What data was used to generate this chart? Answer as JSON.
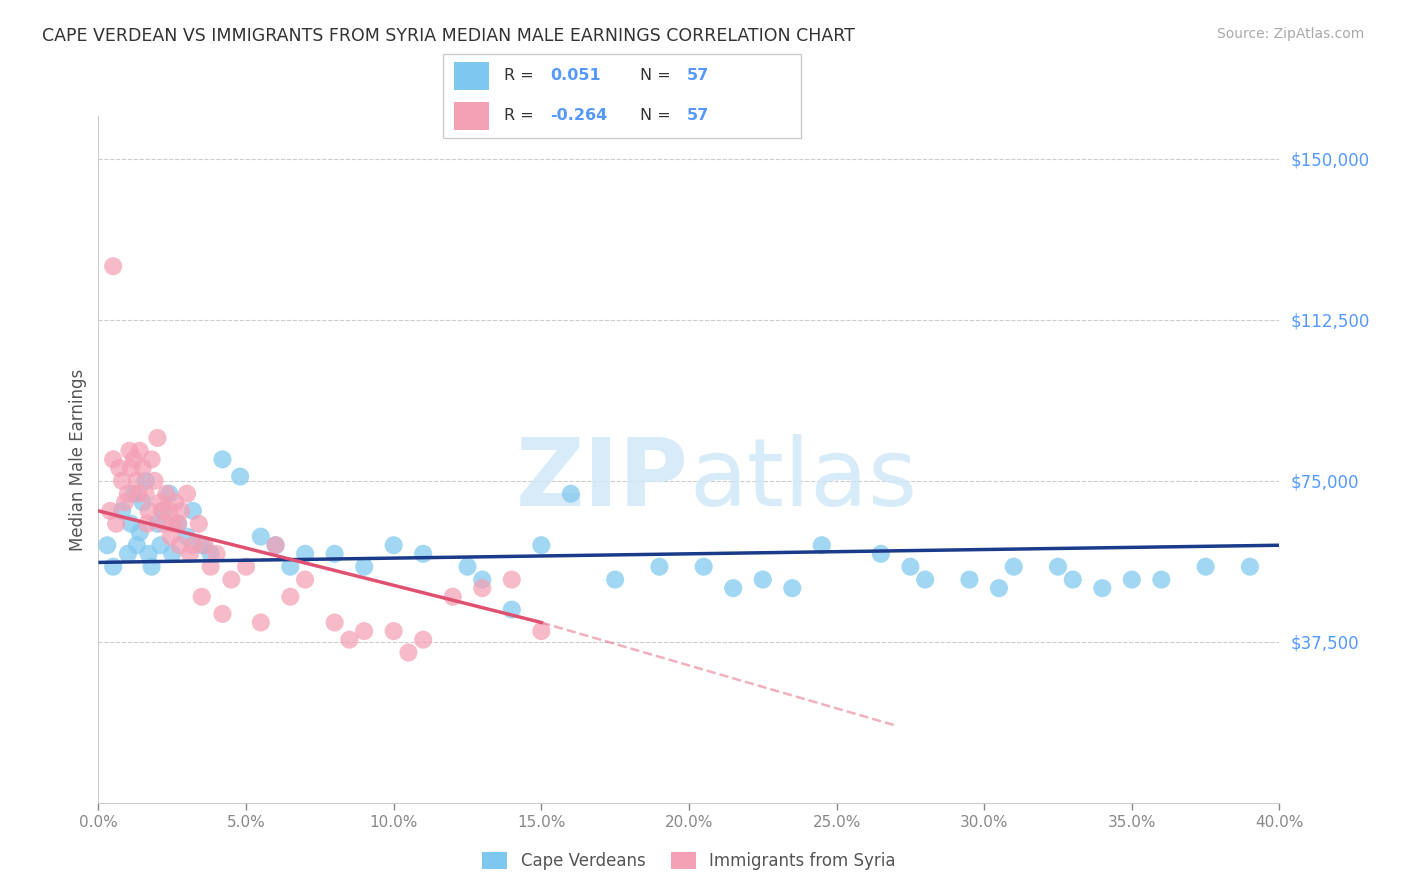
{
  "title": "CAPE VERDEAN VS IMMIGRANTS FROM SYRIA MEDIAN MALE EARNINGS CORRELATION CHART",
  "source": "Source: ZipAtlas.com",
  "ylabel": "Median Male Earnings",
  "y_ticks": [
    0,
    37500,
    75000,
    112500,
    150000
  ],
  "y_tick_labels": [
    "",
    "$37,500",
    "$75,000",
    "$112,500",
    "$150,000"
  ],
  "x_min": 0.0,
  "x_max": 40.0,
  "y_min": 0,
  "y_max": 160000,
  "legend_label1": "Cape Verdeans",
  "legend_label2": "Immigrants from Syria",
  "blue_color": "#7ec8f0",
  "pink_color": "#f4a0b5",
  "line_blue": "#1a3a8a",
  "line_pink": "#e05070",
  "watermark_color": "#d0e8f8",
  "r_blue": 0.051,
  "r_pink": -0.264,
  "n": 57,
  "blue_x": [
    0.3,
    0.5,
    0.8,
    1.0,
    1.1,
    1.2,
    1.3,
    1.4,
    1.5,
    1.6,
    1.7,
    1.8,
    2.0,
    2.1,
    2.2,
    2.4,
    2.5,
    2.7,
    3.0,
    3.2,
    3.5,
    3.8,
    4.2,
    4.8,
    5.5,
    6.5,
    8.0,
    10.0,
    12.5,
    14.0,
    16.0,
    20.5,
    21.5,
    22.5,
    24.5,
    26.5,
    27.5,
    29.5,
    31.0,
    33.0,
    34.0,
    36.0,
    37.5,
    39.0,
    6.0,
    7.0,
    9.0,
    11.0,
    13.0,
    15.0,
    17.5,
    19.0,
    23.5,
    28.0,
    30.5,
    32.5,
    35.0
  ],
  "blue_y": [
    60000,
    55000,
    68000,
    58000,
    65000,
    72000,
    60000,
    63000,
    70000,
    75000,
    58000,
    55000,
    65000,
    60000,
    68000,
    72000,
    58000,
    65000,
    62000,
    68000,
    60000,
    58000,
    80000,
    76000,
    62000,
    55000,
    58000,
    60000,
    55000,
    45000,
    72000,
    55000,
    50000,
    52000,
    60000,
    58000,
    55000,
    52000,
    55000,
    52000,
    50000,
    52000,
    55000,
    55000,
    60000,
    58000,
    55000,
    58000,
    52000,
    60000,
    52000,
    55000,
    50000,
    52000,
    50000,
    55000,
    52000
  ],
  "pink_x": [
    0.4,
    0.6,
    0.8,
    0.9,
    1.0,
    1.1,
    1.2,
    1.3,
    1.4,
    1.5,
    1.6,
    1.7,
    1.8,
    1.9,
    2.0,
    2.1,
    2.2,
    2.3,
    2.4,
    2.5,
    2.6,
    2.7,
    2.8,
    3.0,
    3.2,
    3.4,
    3.6,
    3.8,
    4.0,
    4.5,
    5.0,
    6.0,
    7.0,
    8.0,
    9.0,
    10.0,
    11.0,
    12.0,
    14.0,
    0.5,
    0.7,
    1.05,
    1.35,
    1.65,
    2.15,
    2.45,
    2.75,
    3.1,
    3.5,
    4.2,
    5.5,
    6.5,
    8.5,
    10.5,
    13.0,
    15.0,
    0.5
  ],
  "pink_y": [
    68000,
    65000,
    75000,
    70000,
    72000,
    78000,
    80000,
    75000,
    82000,
    78000,
    72000,
    68000,
    80000,
    75000,
    85000,
    70000,
    65000,
    72000,
    68000,
    65000,
    70000,
    65000,
    68000,
    72000,
    60000,
    65000,
    60000,
    55000,
    58000,
    52000,
    55000,
    60000,
    52000,
    42000,
    40000,
    40000,
    38000,
    48000,
    52000,
    80000,
    78000,
    82000,
    72000,
    65000,
    68000,
    62000,
    60000,
    58000,
    48000,
    44000,
    42000,
    48000,
    38000,
    35000,
    50000,
    40000,
    125000
  ],
  "blue_line_x0": 0.0,
  "blue_line_y0": 56000,
  "blue_line_x1": 40.0,
  "blue_line_y1": 60000,
  "pink_line_x0": 0.0,
  "pink_line_y0": 68000,
  "pink_line_x1": 15.0,
  "pink_line_y1": 42000,
  "pink_dash_x1": 27.0,
  "pink_dash_y1": 18000
}
